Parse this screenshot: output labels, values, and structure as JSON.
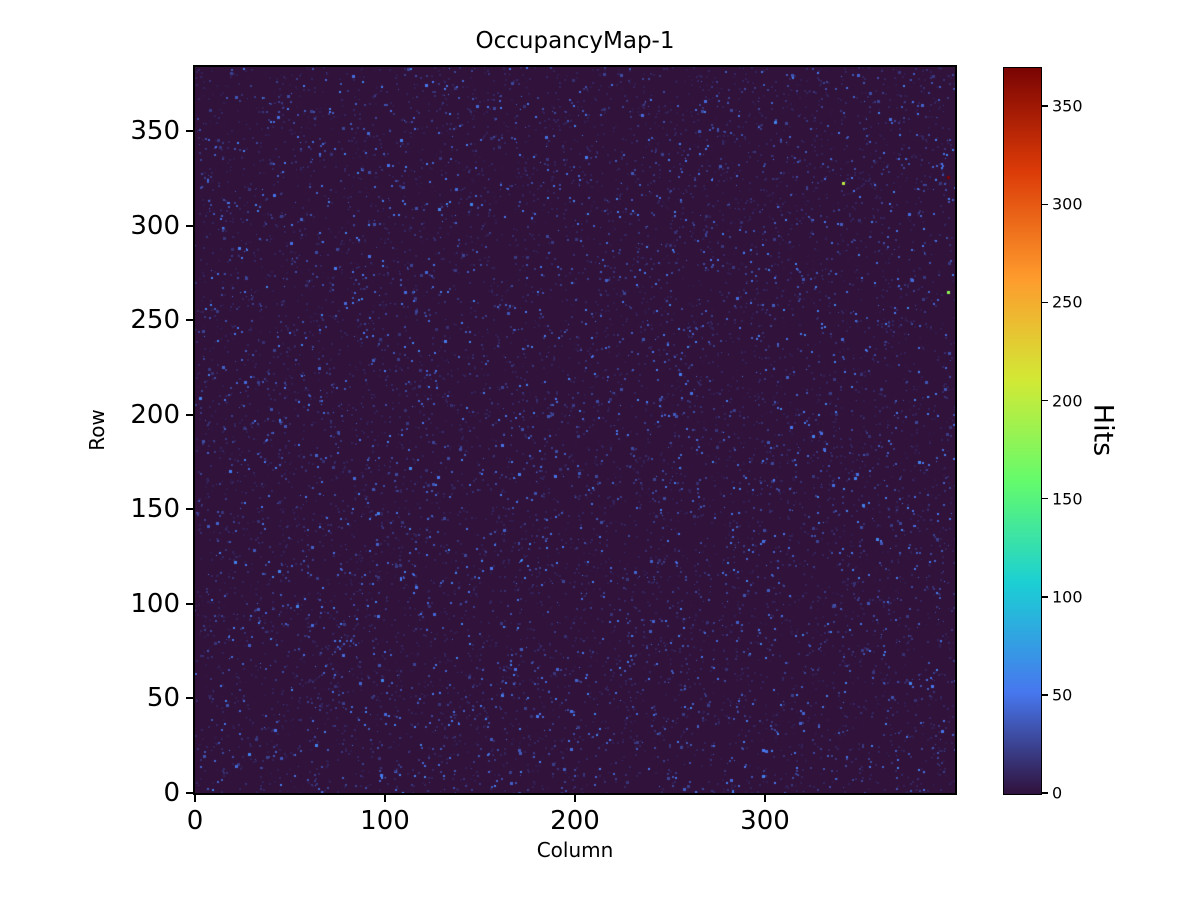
{
  "figure": {
    "background": "#ffffff"
  },
  "chart_data": {
    "type": "heatmap",
    "title": "OccupancyMap-1",
    "xlabel": "Column",
    "ylabel": "Row",
    "xlim": [
      0,
      400
    ],
    "ylim": [
      0,
      384
    ],
    "xticks": [
      0,
      100,
      200,
      300
    ],
    "yticks": [
      0,
      50,
      100,
      150,
      200,
      250,
      300,
      350
    ],
    "grid": false,
    "colorbar": {
      "label": "Hits",
      "ticks": [
        0,
        50,
        100,
        150,
        200,
        250,
        300,
        350
      ],
      "vmin": 0,
      "vmax": 370,
      "colormap": "turbo",
      "stops": [
        {
          "t": 0.0,
          "color": "#30123b"
        },
        {
          "t": 0.14,
          "color": "#4777ef"
        },
        {
          "t": 0.29,
          "color": "#1bcfd4"
        },
        {
          "t": 0.43,
          "color": "#63fb6c"
        },
        {
          "t": 0.57,
          "color": "#d2e935"
        },
        {
          "t": 0.71,
          "color": "#fe9b2d"
        },
        {
          "t": 0.86,
          "color": "#db3a07"
        },
        {
          "t": 1.0,
          "color": "#7a0403"
        }
      ]
    },
    "content": {
      "description": "Sparse random pixel hits over a 400x384 grid; background value 0 (dark purple), most occupied pixels show low hit counts rendered as small blue dots",
      "background_value": 0,
      "approx_hit_pixels": 4000,
      "approx_faint_pixels": 8000,
      "typical_hit_range": [
        15,
        60
      ],
      "outliers": [
        {
          "column": 341,
          "row": 323,
          "hits": 200
        },
        {
          "column": 396,
          "row": 326,
          "hits": 370
        },
        {
          "column": 396,
          "row": 265,
          "hits": 180
        }
      ]
    }
  }
}
